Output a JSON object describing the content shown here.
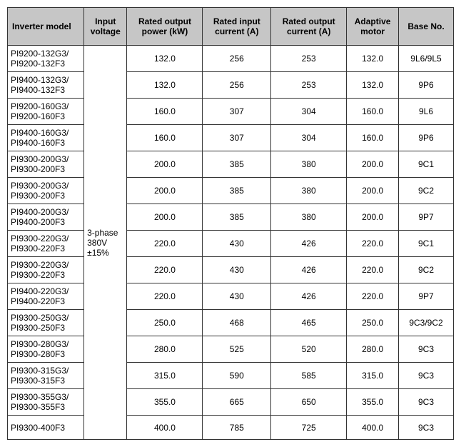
{
  "headers": {
    "model": "Inverter model",
    "voltage": "Input voltage",
    "power": "Rated output power (kW)",
    "input_current": "Rated input current (A)",
    "output_current": "Rated output current (A)",
    "motor": "Adaptive motor",
    "base": "Base No."
  },
  "voltage_cell": "3-phase 380V ±15%",
  "rows": [
    {
      "model": "PI9200-132G3/ PI9200-132F3",
      "power": "132.0",
      "iin": "256",
      "iout": "253",
      "motor": "132.0",
      "base": "9L6/9L5"
    },
    {
      "model": "PI9400-132G3/ PI9400-132F3",
      "power": "132.0",
      "iin": "256",
      "iout": "253",
      "motor": "132.0",
      "base": "9P6"
    },
    {
      "model": "PI9200-160G3/ PI9200-160F3",
      "power": "160.0",
      "iin": "307",
      "iout": "304",
      "motor": "160.0",
      "base": "9L6"
    },
    {
      "model": "PI9400-160G3/ PI9400-160F3",
      "power": "160.0",
      "iin": "307",
      "iout": "304",
      "motor": "160.0",
      "base": "9P6"
    },
    {
      "model": "PI9300-200G3/ PI9300-200F3",
      "power": "200.0",
      "iin": "385",
      "iout": "380",
      "motor": "200.0",
      "base": "9C1"
    },
    {
      "model": "PI9300-200G3/ PI9300-200F3",
      "power": "200.0",
      "iin": "385",
      "iout": "380",
      "motor": "200.0",
      "base": "9C2"
    },
    {
      "model": "PI9400-200G3/ PI9400-200F3",
      "power": "200.0",
      "iin": "385",
      "iout": "380",
      "motor": "200.0",
      "base": "9P7"
    },
    {
      "model": "PI9300-220G3/ PI9300-220F3",
      "power": "220.0",
      "iin": "430",
      "iout": "426",
      "motor": "220.0",
      "base": "9C1"
    },
    {
      "model": "PI9300-220G3/ PI9300-220F3",
      "power": "220.0",
      "iin": "430",
      "iout": "426",
      "motor": "220.0",
      "base": "9C2"
    },
    {
      "model": "PI9400-220G3/ PI9400-220F3",
      "power": "220.0",
      "iin": "430",
      "iout": "426",
      "motor": "220.0",
      "base": "9P7"
    },
    {
      "model": "PI9300-250G3/ PI9300-250F3",
      "power": "250.0",
      "iin": "468",
      "iout": "465",
      "motor": "250.0",
      "base": "9C3/9C2"
    },
    {
      "model": "PI9300-280G3/ PI9300-280F3",
      "power": "280.0",
      "iin": "525",
      "iout": "520",
      "motor": "280.0",
      "base": "9C3"
    },
    {
      "model": "PI9300-315G3/ PI9300-315F3",
      "power": "315.0",
      "iin": "590",
      "iout": "585",
      "motor": "315.0",
      "base": "9C3"
    },
    {
      "model": "PI9300-355G3/ PI9300-355F3",
      "power": "355.0",
      "iin": "665",
      "iout": "650",
      "motor": "355.0",
      "base": "9C3"
    },
    {
      "model": "PI9300-400F3",
      "power": "400.0",
      "iin": "785",
      "iout": "725",
      "motor": "400.0",
      "base": "9C3"
    }
  ],
  "style": {
    "header_bg": "#c6c6c6",
    "cell_bg": "#ffffff",
    "border_color": "#333333",
    "font_size": 12,
    "text_color": "#000000"
  }
}
